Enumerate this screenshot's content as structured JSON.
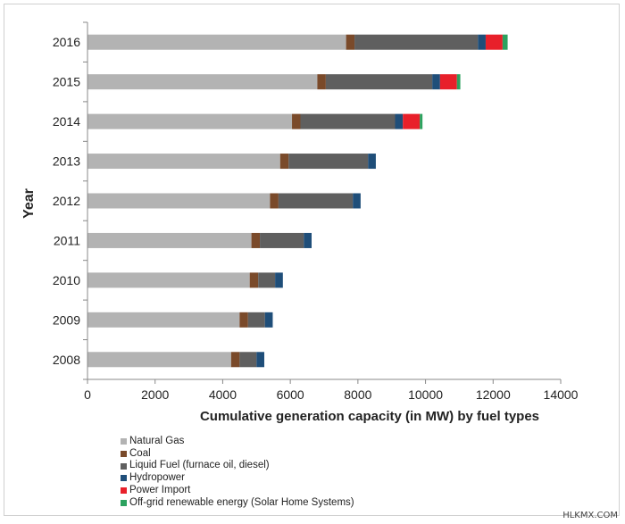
{
  "chart_data": {
    "type": "bar",
    "orientation": "horizontal",
    "stacked": true,
    "categories": [
      "2016",
      "2015",
      "2014",
      "2013",
      "2012",
      "2011",
      "2010",
      "2009",
      "2008"
    ],
    "series": [
      {
        "name": "Natural Gas",
        "color": "#b3b3b3",
        "values": [
          7650,
          6800,
          6050,
          5700,
          5400,
          4850,
          4800,
          4500,
          4250
        ]
      },
      {
        "name": "Coal",
        "color": "#7a4a2a",
        "values": [
          250,
          250,
          250,
          250,
          250,
          250,
          250,
          250,
          250
        ]
      },
      {
        "name": "Liquid Fuel (furnace oil, diesel)",
        "color": "#5f5f5f",
        "values": [
          3650,
          3150,
          2800,
          2350,
          2200,
          1300,
          500,
          500,
          500
        ]
      },
      {
        "name": "Hydropower",
        "color": "#1f4e79",
        "values": [
          230,
          230,
          230,
          230,
          230,
          230,
          230,
          230,
          230
        ]
      },
      {
        "name": "Power Import",
        "color": "#e8202a",
        "values": [
          500,
          500,
          500,
          0,
          0,
          0,
          0,
          0,
          0
        ]
      },
      {
        "name": "Off-grid renewable energy (Solar Home Systems)",
        "color": "#2ca25f",
        "values": [
          150,
          100,
          80,
          0,
          0,
          0,
          0,
          0,
          0
        ]
      }
    ],
    "xlim": [
      0,
      14000
    ],
    "xticks": [
      "0",
      "2000",
      "4000",
      "6000",
      "8000",
      "10000",
      "12000",
      "14000"
    ],
    "xlabel": "Cumulative generation capacity (in MW) by fuel types",
    "ylabel": "Year",
    "legend_position": "bottom-left",
    "grid": false
  },
  "watermark": "HLKMX.COM"
}
